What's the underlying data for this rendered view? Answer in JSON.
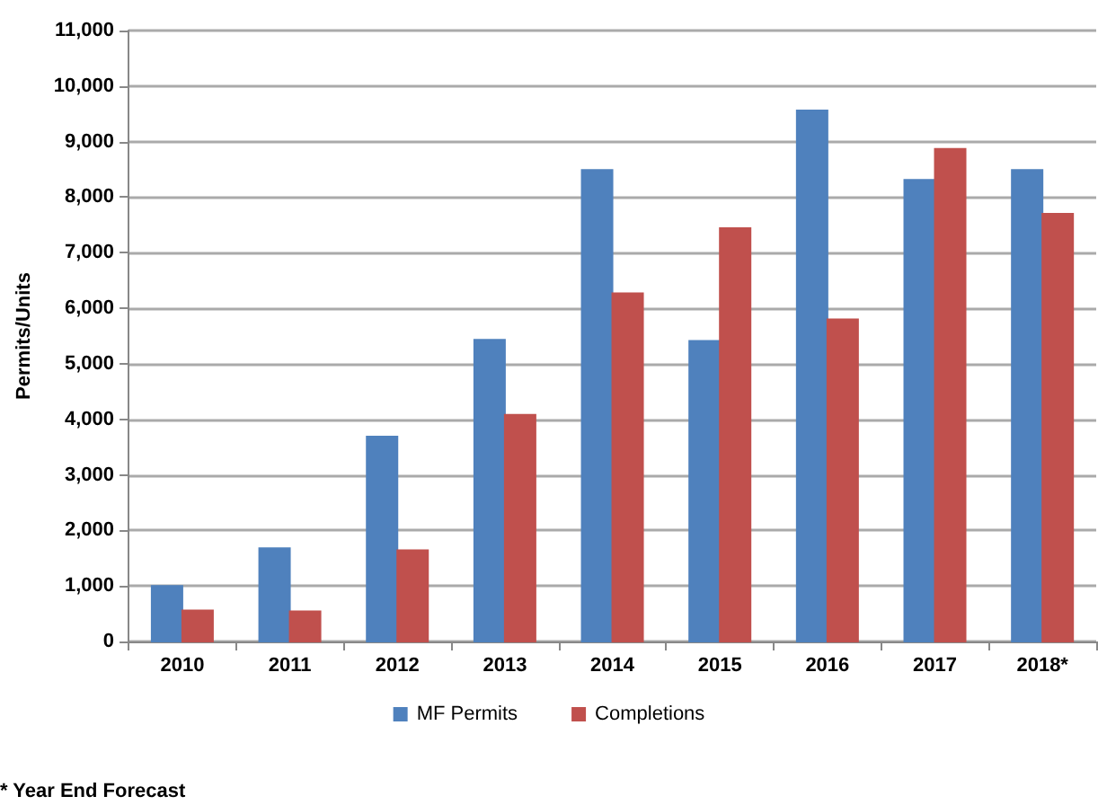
{
  "chart_data": {
    "type": "bar",
    "ylabel": "Permits/Units",
    "categories": [
      "2010",
      "2011",
      "2012",
      "2013",
      "2014",
      "2015",
      "2016",
      "2017",
      "2018*"
    ],
    "series": [
      {
        "name": "MF Permits",
        "color": "#4f81bd",
        "values": [
          1000,
          1680,
          3690,
          5430,
          8490,
          5410,
          9560,
          8310,
          8490
        ]
      },
      {
        "name": "Completions",
        "color": "#c0504d",
        "values": [
          560,
          540,
          1640,
          4080,
          6270,
          7440,
          5800,
          8870,
          7700
        ]
      }
    ],
    "ylim": [
      0,
      11000
    ],
    "yticks": [
      {
        "value": 0,
        "label": "0"
      },
      {
        "value": 1000,
        "label": "1,000"
      },
      {
        "value": 2000,
        "label": "2,000"
      },
      {
        "value": 3000,
        "label": "3,000"
      },
      {
        "value": 4000,
        "label": "4,000"
      },
      {
        "value": 5000,
        "label": "5,000"
      },
      {
        "value": 6000,
        "label": "6,000"
      },
      {
        "value": 7000,
        "label": "7,000"
      },
      {
        "value": 8000,
        "label": "8,000"
      },
      {
        "value": 9000,
        "label": "9,000"
      },
      {
        "value": 10000,
        "label": "10,000"
      },
      {
        "value": 11000,
        "label": "11,000"
      }
    ],
    "grid": "y",
    "legend": "bottom",
    "annotations": [
      "* Year End Forecast"
    ]
  }
}
